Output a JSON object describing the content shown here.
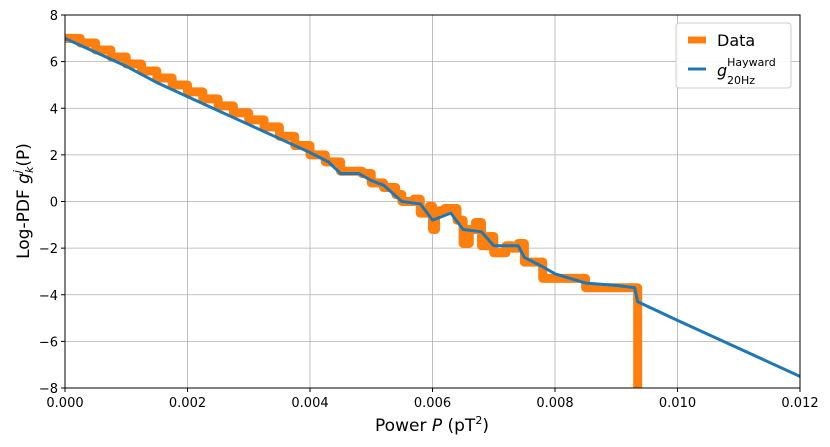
{
  "chart_data": {
    "type": "line",
    "xlabel_prefix": "Power ",
    "xlabel_var": "P",
    "xlabel_unit_open": " (pT",
    "xlabel_unit_sup": "2",
    "xlabel_unit_close": ")",
    "ylabel_prefix": "Log-PDF ",
    "ylabel_func": "g",
    "ylabel_sup": "j",
    "ylabel_sub": "k",
    "ylabel_suffix": "(P)",
    "xlim": [
      0,
      0.012
    ],
    "ylim": [
      -8,
      8
    ],
    "xticks": [
      0,
      0.002,
      0.004,
      0.006,
      0.008,
      0.01,
      0.012
    ],
    "xtick_labels": [
      "0.000",
      "0.002",
      "0.004",
      "0.006",
      "0.008",
      "0.010",
      "0.012"
    ],
    "yticks": [
      -8,
      -6,
      -4,
      -2,
      0,
      2,
      4,
      6,
      8
    ],
    "ytick_labels": [
      "−8",
      "−6",
      "−4",
      "−2",
      "0",
      "2",
      "4",
      "6",
      "8"
    ],
    "grid": true,
    "legend_position": "top-right",
    "colors": {
      "data": "#ff7f0e",
      "fit": "#1f77b4",
      "grid": "#b0b0b0"
    },
    "series": [
      {
        "name": "Data",
        "style": "step",
        "x": [
          0.0,
          0.00025,
          0.0005,
          0.00075,
          0.001,
          0.00125,
          0.0015,
          0.00175,
          0.002,
          0.00225,
          0.0025,
          0.00275,
          0.003,
          0.00325,
          0.0035,
          0.00375,
          0.004,
          0.00425,
          0.0045,
          0.0047,
          0.00485,
          0.005,
          0.0052,
          0.0054,
          0.0055,
          0.0057,
          0.0058,
          0.00595,
          0.006,
          0.00605,
          0.0062,
          0.0064,
          0.0065,
          0.0066,
          0.0067,
          0.0068,
          0.0069,
          0.007,
          0.0072,
          0.0073,
          0.0074,
          0.0075,
          0.0078,
          0.0081,
          0.0085,
          0.0093,
          0.00935
        ],
        "y": [
          7.0,
          6.8,
          6.5,
          6.2,
          5.9,
          5.6,
          5.3,
          5.0,
          4.7,
          4.4,
          4.1,
          3.8,
          3.5,
          3.2,
          2.8,
          2.4,
          2.0,
          1.7,
          1.3,
          1.3,
          1.2,
          0.8,
          0.6,
          0.3,
          0.0,
          0.1,
          -0.5,
          -0.2,
          -1.2,
          -0.4,
          -0.3,
          -0.8,
          -1.8,
          -1.2,
          -0.9,
          -1.9,
          -1.5,
          -2.2,
          -1.9,
          -2.0,
          -1.8,
          -2.6,
          -3.3,
          -3.3,
          -3.7,
          -3.7,
          -8.0
        ]
      },
      {
        "name": "g",
        "name_sup": "Hayward",
        "name_sub": "20Hz",
        "style": "line",
        "x": [
          0.0,
          0.0005,
          0.001,
          0.0015,
          0.002,
          0.0025,
          0.003,
          0.0035,
          0.004,
          0.0043,
          0.0045,
          0.0048,
          0.005,
          0.0052,
          0.0055,
          0.0058,
          0.006,
          0.0063,
          0.0065,
          0.0068,
          0.007,
          0.0072,
          0.0074,
          0.0075,
          0.0078,
          0.008,
          0.0085,
          0.009,
          0.0093,
          0.00935,
          0.01,
          0.011,
          0.012
        ],
        "y": [
          7.0,
          6.4,
          5.8,
          5.1,
          4.5,
          3.9,
          3.3,
          2.7,
          2.1,
          1.7,
          1.2,
          1.2,
          0.9,
          0.7,
          0.0,
          -0.1,
          -0.8,
          -0.5,
          -1.2,
          -1.3,
          -1.9,
          -1.9,
          -1.9,
          -2.4,
          -2.8,
          -3.1,
          -3.5,
          -3.6,
          -3.7,
          -4.3,
          -5.1,
          -6.3,
          -7.5
        ]
      }
    ]
  }
}
